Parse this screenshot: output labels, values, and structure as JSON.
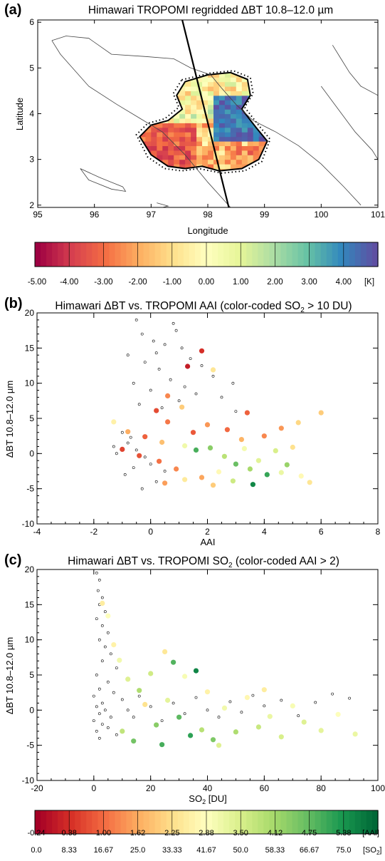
{
  "panel_a": {
    "label": "(a)",
    "title": "Himawari TROPOMI regridded ΔBT 10.8–12.0 µm",
    "xlabel": "Longitude",
    "ylabel": "Latitude",
    "xticks": [
      "95",
      "96",
      "97",
      "98",
      "99",
      "100",
      "101"
    ],
    "yticks": [
      "2",
      "3",
      "4",
      "5",
      "6"
    ],
    "xlim": [
      95,
      101
    ],
    "ylim": [
      1.95,
      6.05
    ],
    "colorbar": {
      "labels": [
        "-5.00",
        "-4.00",
        "-3.00",
        "-2.00",
        "-1.00",
        "0.00",
        "1.00",
        "2.00",
        "3.00",
        "4.00"
      ],
      "unit": "[K]",
      "colors": [
        "#9e0142",
        "#d53e4f",
        "#f46d43",
        "#fdae61",
        "#fee08b",
        "#ffffbf",
        "#e6f598",
        "#abdda4",
        "#66c2a5",
        "#3288bd",
        "#5e4fa2"
      ]
    }
  },
  "panel_b": {
    "label": "(b)",
    "title_main": "Himawari ΔBT vs. TROPOMI AAI (color-coded SO",
    "title_sub": "2",
    "title_end": " > 10 DU)",
    "xlabel": "AAI",
    "ylabel": "ΔBT 10.8–12.0 µm",
    "xticks": [
      "-4",
      "-2",
      "0",
      "2",
      "4",
      "6",
      "8"
    ],
    "yticks": [
      "-10",
      "-5",
      "0",
      "5",
      "10",
      "15",
      "20"
    ]
  },
  "panel_c": {
    "label": "(c)",
    "title_main": "Himawari ΔBT vs. TROPOMI SO",
    "title_sub": "2",
    "title_end": " (color-coded AAI > 2)",
    "xlabel_main": "SO",
    "xlabel_sub": "2",
    "xlabel_end": " [DU]",
    "ylabel": "ΔBT 10.8–12.0 µm",
    "xticks": [
      "-20",
      "0",
      "20",
      "40",
      "60",
      "80",
      "100"
    ],
    "yticks": [
      "-10",
      "-5",
      "0",
      "5",
      "10",
      "15",
      "20"
    ],
    "colorbar": {
      "labels_aai": [
        "-0.24",
        "0.38",
        "1.00",
        "1.62",
        "2.25",
        "2.88",
        "3.50",
        "4.12",
        "4.75",
        "5.38"
      ],
      "unit_aai": "[AAI]",
      "labels_so2": [
        "0.0",
        "8.33",
        "16.67",
        "25.0",
        "33.33",
        "41.67",
        "50.0",
        "58.33",
        "66.67",
        "75.0"
      ],
      "unit_so2_main": "[SO",
      "unit_so2_sub": "2",
      "unit_so2_end": "]",
      "colors": [
        "#a50026",
        "#d73027",
        "#f46d43",
        "#fdae61",
        "#fee08b",
        "#ffffbf",
        "#d9ef8b",
        "#a6d96a",
        "#66bd63",
        "#1a9850",
        "#006837"
      ]
    }
  },
  "chart_data": [
    {
      "type": "heatmap",
      "title": "Himawari TROPOMI regridded ΔBT 10.8–12.0 µm",
      "xlabel": "Longitude",
      "ylabel": "Latitude",
      "xlim": [
        95,
        101
      ],
      "ylim": [
        2,
        6
      ],
      "colorbar_range_K": [
        -5,
        5
      ],
      "regions": [
        {
          "lon": [
            97.0,
            97.7
          ],
          "lat": [
            3.0,
            3.7
          ],
          "dbt": -4.5
        },
        {
          "lon": [
            97.7,
            98.0
          ],
          "lat": [
            2.8,
            3.4
          ],
          "dbt": -3.5
        },
        {
          "lon": [
            97.6,
            98.7
          ],
          "lat": [
            4.1,
            4.8
          ],
          "dbt": -0.5
        },
        {
          "lon": [
            98.0,
            98.8
          ],
          "lat": [
            3.3,
            4.3
          ],
          "dbt": 4.5
        },
        {
          "lon": [
            98.3,
            98.9
          ],
          "lat": [
            2.7,
            3.3
          ],
          "dbt": -3.0
        },
        {
          "lon": [
            97.5,
            98.0
          ],
          "lat": [
            3.4,
            4.1
          ],
          "dbt": -2.0
        }
      ]
    },
    {
      "type": "scatter",
      "title": "Himawari ΔBT vs. TROPOMI AAI (color-coded SO2 > 10 DU)",
      "xlabel": "AAI",
      "ylabel": "ΔBT 10.8–12.0 µm",
      "xlim": [
        -4,
        8
      ],
      "ylim": [
        -10,
        20
      ],
      "open_points": [
        [
          -0.5,
          19
        ],
        [
          -0.3,
          17
        ],
        [
          0.1,
          16
        ],
        [
          0.5,
          15.5
        ],
        [
          0.9,
          17.5
        ],
        [
          1.1,
          15
        ],
        [
          -0.8,
          14
        ],
        [
          -0.2,
          13
        ],
        [
          0.3,
          12
        ],
        [
          1.4,
          13.5
        ],
        [
          1.8,
          12.5
        ],
        [
          2.2,
          11
        ],
        [
          -0.6,
          10
        ],
        [
          0.0,
          9
        ],
        [
          0.7,
          10.5
        ],
        [
          1.2,
          9.5
        ],
        [
          2.5,
          8
        ],
        [
          2.9,
          10
        ],
        [
          -0.4,
          7
        ],
        [
          0.4,
          6.5
        ],
        [
          3.0,
          6
        ],
        [
          -1.0,
          3
        ],
        [
          -0.8,
          1.5
        ],
        [
          -0.5,
          0.5
        ],
        [
          -0.2,
          -0.5
        ],
        [
          0.0,
          -1.5
        ],
        [
          -0.6,
          -2
        ],
        [
          -1.2,
          0
        ],
        [
          -0.9,
          -3
        ],
        [
          0.2,
          -4
        ],
        [
          -0.3,
          -5
        ],
        [
          -1.3,
          1
        ],
        [
          0.5,
          -2.5
        ],
        [
          -0.7,
          2.3
        ],
        [
          1.0,
          7.5
        ],
        [
          1.6,
          8.5
        ],
        [
          0.8,
          18.5
        ],
        [
          0.2,
          14.3
        ]
      ],
      "filled_points": [
        {
          "aai": 1.8,
          "dbt": 14.6,
          "so2": 8
        },
        {
          "aai": 1.3,
          "dbt": 12.4,
          "so2": 5
        },
        {
          "aai": 2.2,
          "dbt": 11.9,
          "so2": 35
        },
        {
          "aai": 0.6,
          "dbt": 8.2,
          "so2": 20
        },
        {
          "aai": 0.2,
          "dbt": 6.1,
          "so2": 12
        },
        {
          "aai": 0.6,
          "dbt": 4.5,
          "so2": 18
        },
        {
          "aai": 1.1,
          "dbt": 6.6,
          "so2": 30
        },
        {
          "aai": 3.4,
          "dbt": 5.8,
          "so2": 15
        },
        {
          "aai": 2.0,
          "dbt": 4.1,
          "so2": 22
        },
        {
          "aai": -1.3,
          "dbt": 4.5,
          "so2": 38
        },
        {
          "aai": -0.8,
          "dbt": 3.1,
          "so2": 25
        },
        {
          "aai": -0.2,
          "dbt": 2.4,
          "so2": 15
        },
        {
          "aai": 0.4,
          "dbt": 1.6,
          "so2": 28
        },
        {
          "aai": 1.2,
          "dbt": 1.1,
          "so2": 45
        },
        {
          "aai": 1.6,
          "dbt": 0.5,
          "so2": 70
        },
        {
          "aai": 2.1,
          "dbt": 0.8,
          "so2": 62
        },
        {
          "aai": 2.6,
          "dbt": -0.4,
          "so2": 55
        },
        {
          "aai": 3.0,
          "dbt": -1.5,
          "so2": 66
        },
        {
          "aai": 3.5,
          "dbt": -2.2,
          "so2": 58
        },
        {
          "aai": 4.1,
          "dbt": -3.0,
          "so2": 72
        },
        {
          "aai": 3.8,
          "dbt": -1.0,
          "so2": 48
        },
        {
          "aai": 2.4,
          "dbt": -2.6,
          "so2": 40
        },
        {
          "aai": 1.8,
          "dbt": -3.4,
          "so2": 24
        },
        {
          "aai": 0.9,
          "dbt": -2.2,
          "so2": 20
        },
        {
          "aai": 0.3,
          "dbt": -1.1,
          "so2": 17
        },
        {
          "aai": -0.4,
          "dbt": -0.3,
          "so2": 13
        },
        {
          "aai": -1.0,
          "dbt": 0.6,
          "so2": 11
        },
        {
          "aai": 4.6,
          "dbt": -2.7,
          "so2": 46
        },
        {
          "aai": 5.3,
          "dbt": -3.2,
          "so2": 40
        },
        {
          "aai": 5.6,
          "dbt": -4.1,
          "so2": 35
        },
        {
          "aai": 6.0,
          "dbt": 5.8,
          "so2": 30
        },
        {
          "aai": 5.2,
          "dbt": 4.4,
          "so2": 32
        },
        {
          "aai": 4.6,
          "dbt": 3.6,
          "so2": 22
        },
        {
          "aai": 4.0,
          "dbt": 2.5,
          "so2": 20
        },
        {
          "aai": 3.2,
          "dbt": 2.0,
          "so2": 26
        },
        {
          "aai": 2.7,
          "dbt": 3.4,
          "so2": 16
        },
        {
          "aai": 1.5,
          "dbt": 3.0,
          "so2": 14
        },
        {
          "aai": 3.6,
          "dbt": -4.4,
          "so2": 78
        },
        {
          "aai": 2.9,
          "dbt": -3.9,
          "so2": 52
        },
        {
          "aai": 2.2,
          "dbt": -4.5,
          "so2": 30
        },
        {
          "aai": 1.2,
          "dbt": -3.7,
          "so2": 36
        },
        {
          "aai": 0.5,
          "dbt": -4.2,
          "so2": 23
        },
        {
          "aai": 4.4,
          "dbt": 0.4,
          "so2": 50
        },
        {
          "aai": 5.0,
          "dbt": 0.9,
          "so2": 34
        },
        {
          "aai": 4.8,
          "dbt": -1.6,
          "so2": 60
        },
        {
          "aai": 3.3,
          "dbt": 0.7,
          "so2": 44
        }
      ]
    },
    {
      "type": "scatter",
      "title": "Himawari ΔBT vs. TROPOMI SO2 (color-coded AAI > 2)",
      "xlabel": "SO2 [DU]",
      "ylabel": "ΔBT 10.8–12.0 µm",
      "xlim": [
        -20,
        100
      ],
      "ylim": [
        -10,
        20
      ],
      "open_points": [
        [
          1,
          19.5
        ],
        [
          2,
          18.5
        ],
        [
          1.5,
          17
        ],
        [
          3,
          16
        ],
        [
          2,
          15
        ],
        [
          4,
          14
        ],
        [
          1,
          13
        ],
        [
          3,
          12
        ],
        [
          5,
          11
        ],
        [
          2,
          10
        ],
        [
          4,
          9
        ],
        [
          6,
          8
        ],
        [
          3,
          7
        ],
        [
          8,
          6
        ],
        [
          1,
          5
        ],
        [
          5,
          4
        ],
        [
          2,
          3
        ],
        [
          7,
          2.5
        ],
        [
          0,
          2
        ],
        [
          3,
          1
        ],
        [
          1,
          0.5
        ],
        [
          4,
          0
        ],
        [
          2,
          -0.5
        ],
        [
          6,
          -1
        ],
        [
          0,
          -1.5
        ],
        [
          3,
          -2
        ],
        [
          5,
          -2.5
        ],
        [
          1,
          -3
        ],
        [
          8,
          -3.5
        ],
        [
          2,
          -4
        ],
        [
          10,
          1.5
        ],
        [
          12,
          0
        ],
        [
          14,
          -1
        ],
        [
          16,
          2
        ],
        [
          20,
          0.5
        ],
        [
          24,
          -1.5
        ],
        [
          28,
          1
        ],
        [
          32,
          -0.5
        ],
        [
          36,
          1.8
        ],
        [
          40,
          0
        ],
        [
          44,
          -1
        ],
        [
          48,
          1.2
        ],
        [
          52,
          -0.3
        ],
        [
          56,
          2.1
        ],
        [
          60,
          0.6
        ],
        [
          66,
          1.4
        ],
        [
          72,
          -0.8
        ],
        [
          78,
          1.1
        ],
        [
          84,
          2.3
        ],
        [
          90,
          1.7
        ]
      ],
      "filled_points": [
        {
          "so2": 3,
          "dbt": 15.2,
          "aai": 2.5
        },
        {
          "so2": 5,
          "dbt": 13.4,
          "aai": 2.9
        },
        {
          "so2": 7,
          "dbt": 9.3,
          "aai": 2.6
        },
        {
          "so2": 9,
          "dbt": 7.1,
          "aai": 3.1
        },
        {
          "so2": 12,
          "dbt": 4.4,
          "aai": 3.4
        },
        {
          "so2": 16,
          "dbt": 2.8,
          "aai": 4.0
        },
        {
          "so2": 20,
          "dbt": 5.2,
          "aai": 3.6
        },
        {
          "so2": 25,
          "dbt": 8.3,
          "aai": 2.4
        },
        {
          "so2": 28,
          "dbt": 6.8,
          "aai": 4.9
        },
        {
          "so2": 32,
          "dbt": 4.8,
          "aai": 3.0
        },
        {
          "so2": 36,
          "dbt": 5.6,
          "aai": 5.6
        },
        {
          "so2": 22,
          "dbt": -2.1,
          "aai": 4.4
        },
        {
          "so2": 26,
          "dbt": 1.4,
          "aai": 3.3
        },
        {
          "so2": 30,
          "dbt": -1.0,
          "aai": 4.8
        },
        {
          "so2": 34,
          "dbt": -3.6,
          "aai": 5.2
        },
        {
          "so2": 38,
          "dbt": -2.8,
          "aai": 3.9
        },
        {
          "so2": 42,
          "dbt": -4.2,
          "aai": 4.5
        },
        {
          "so2": 46,
          "dbt": 0.3,
          "aai": 3.1
        },
        {
          "so2": 50,
          "dbt": -3.1,
          "aai": 4.0
        },
        {
          "so2": 54,
          "dbt": 1.8,
          "aai": 2.7
        },
        {
          "so2": 58,
          "dbt": -2.4,
          "aai": 3.7
        },
        {
          "so2": 62,
          "dbt": -0.9,
          "aai": 3.2
        },
        {
          "so2": 66,
          "dbt": -3.8,
          "aai": 3.5
        },
        {
          "so2": 70,
          "dbt": 0.6,
          "aai": 3.0
        },
        {
          "so2": 74,
          "dbt": -1.7,
          "aai": 3.4
        },
        {
          "so2": 80,
          "dbt": -2.9,
          "aai": 3.3
        },
        {
          "so2": 86,
          "dbt": -0.6,
          "aai": 2.9
        },
        {
          "so2": 92,
          "dbt": -3.4,
          "aai": 3.2
        },
        {
          "so2": 14,
          "dbt": -4.4,
          "aai": 4.6
        },
        {
          "so2": 18,
          "dbt": 0.8,
          "aai": 2.3
        },
        {
          "so2": 10,
          "dbt": -3.0,
          "aai": 3.8
        },
        {
          "so2": 40,
          "dbt": 2.6,
          "aai": 2.6
        },
        {
          "so2": 44,
          "dbt": -5.0,
          "aai": 3.4
        },
        {
          "so2": 24,
          "dbt": -4.9,
          "aai": 5.0
        },
        {
          "so2": 60,
          "dbt": 2.9,
          "aai": 2.5
        }
      ]
    }
  ]
}
